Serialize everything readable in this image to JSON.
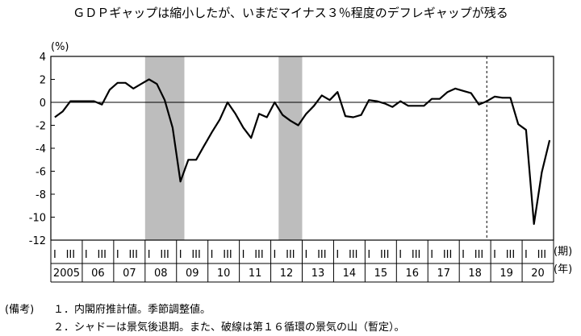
{
  "chart_data": {
    "type": "line",
    "title": "ＧＤＰギャップは縮小したが、いまだマイナス３％程度のデフレギャップが残る",
    "y_unit": "(%)",
    "ylim": [
      -12,
      4
    ],
    "y_ticks": [
      4,
      2,
      0,
      -2,
      -4,
      -6,
      -8,
      -10,
      -12
    ],
    "x_unit_quarter": "(期)",
    "x_unit_year": "(年)",
    "quarter_labels": [
      "I",
      "III"
    ],
    "years": [
      "2005",
      "06",
      "07",
      "08",
      "09",
      "10",
      "11",
      "12",
      "13",
      "14",
      "15",
      "16",
      "17",
      "18",
      "19",
      "20"
    ],
    "x_start": "2005 Q1",
    "x_end": "2020 Q4",
    "recession_shading": [
      {
        "from": "2008 Q1",
        "to": "2009 Q1"
      },
      {
        "from": "2012 Q2",
        "to": "2012 Q4"
      }
    ],
    "peak_line": "2018 Q4",
    "zero_line": true,
    "grid": false,
    "series": [
      {
        "values": [
          -1.3,
          -0.8,
          0.1,
          0.1,
          0.1,
          0.1,
          -0.2,
          1.1,
          1.7,
          1.7,
          1.2,
          1.6,
          2.0,
          1.6,
          0.2,
          -2.2,
          -6.9,
          -5.0,
          -5.0,
          -3.8,
          -2.6,
          -1.5,
          0.0,
          -1.0,
          -2.2,
          -3.1,
          -1.0,
          -1.3,
          0.0,
          -1.1,
          -1.6,
          -2.0,
          -1.0,
          -0.3,
          0.6,
          0.2,
          0.9,
          -1.2,
          -1.3,
          -1.1,
          0.2,
          0.1,
          -0.1,
          -0.4,
          0.1,
          -0.3,
          -0.3,
          -0.3,
          0.3,
          0.3,
          0.9,
          1.2,
          1.0,
          0.8,
          -0.2,
          0.1,
          0.5,
          0.4,
          0.4,
          -1.9,
          -2.4,
          -10.6,
          -6.1,
          -3.3
        ]
      }
    ]
  },
  "notes": {
    "label": "(備考)",
    "line1": "１．内閣府推計値。季節調整値。",
    "line2": "２．シャドーは景気後退期。また、破線は第１６循環の景気の山（暫定）。"
  }
}
